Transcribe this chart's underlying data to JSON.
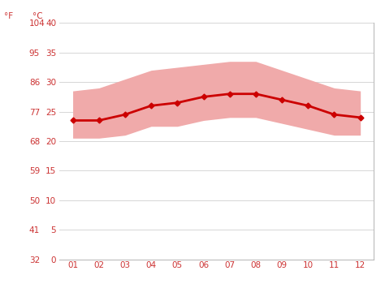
{
  "months": [
    1,
    2,
    3,
    4,
    5,
    6,
    7,
    8,
    9,
    10,
    11,
    12
  ],
  "month_labels": [
    "01",
    "02",
    "03",
    "04",
    "05",
    "06",
    "07",
    "08",
    "09",
    "10",
    "11",
    "12"
  ],
  "avg_temp_c": [
    23.5,
    23.5,
    24.5,
    26.0,
    26.5,
    27.5,
    28.0,
    28.0,
    27.0,
    26.0,
    24.5,
    24.0
  ],
  "max_temp_c": [
    28.5,
    29.0,
    30.5,
    32.0,
    32.5,
    33.0,
    33.5,
    33.5,
    32.0,
    30.5,
    29.0,
    28.5
  ],
  "min_temp_c": [
    20.5,
    20.5,
    21.0,
    22.5,
    22.5,
    23.5,
    24.0,
    24.0,
    23.0,
    22.0,
    21.0,
    21.0
  ],
  "yticks_c": [
    0,
    5,
    10,
    15,
    20,
    25,
    30,
    35,
    40
  ],
  "yticks_f": [
    32,
    41,
    50,
    59,
    68,
    77,
    86,
    95,
    104
  ],
  "line_color": "#cc0000",
  "band_color": "#f0aaaa",
  "background_color": "#ffffff",
  "grid_color": "#d0d0d0",
  "tick_color": "#cc3333",
  "axis_color": "#bbbbbb",
  "ylim_c": [
    0,
    40
  ],
  "xlim": [
    0.5,
    12.5
  ],
  "label_fontsize": 7.5,
  "tick_fontsize": 7.5
}
